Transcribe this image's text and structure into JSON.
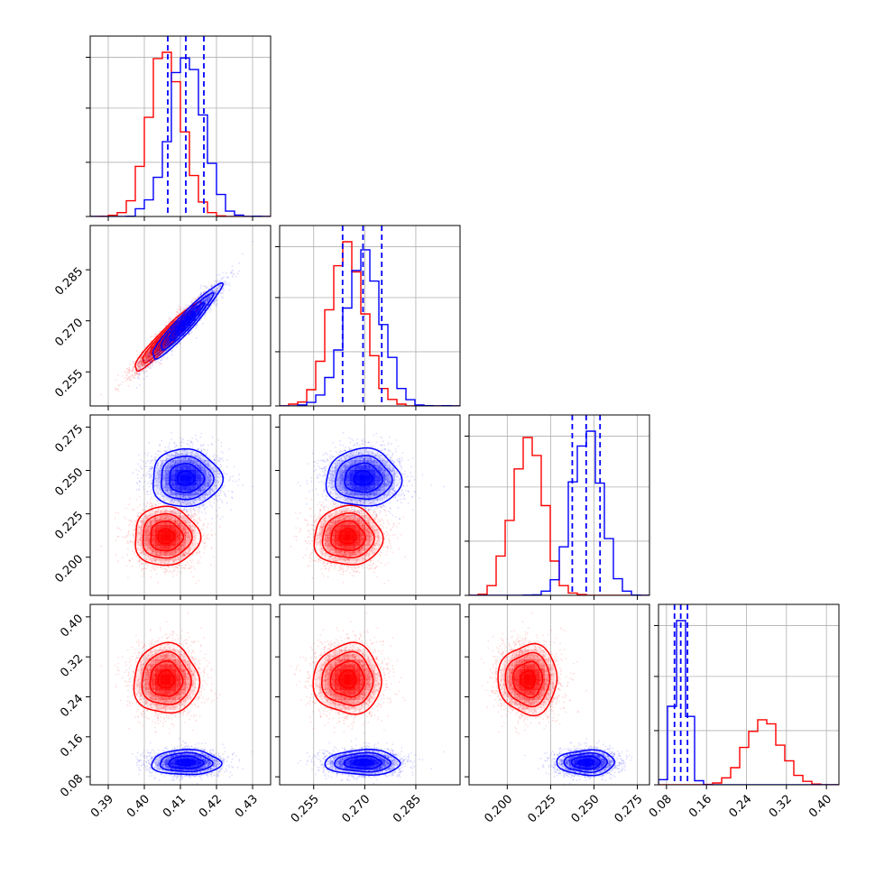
{
  "chart_data": {
    "type": "corner",
    "n_params": 4,
    "background": "#ffffff",
    "grid": true,
    "series": [
      {
        "color": "#ff0000",
        "means": [
          0.406,
          0.265,
          0.212,
          0.275
        ],
        "sds": [
          0.0045,
          0.005,
          0.0085,
          0.035
        ],
        "correlation": [
          [
            1,
            0.95,
            0,
            0
          ],
          [
            0.95,
            1,
            0,
            0
          ],
          [
            0,
            0,
            1,
            0
          ],
          [
            0,
            0,
            0,
            1
          ]
        ]
      },
      {
        "color": "#0000ff",
        "means": [
          0.4115,
          0.2695,
          0.2455,
          0.1085
        ],
        "sds": [
          0.0048,
          0.0055,
          0.0083,
          0.0125
        ],
        "correlation": [
          [
            1,
            0.95,
            0,
            0
          ],
          [
            0.95,
            1,
            0,
            0
          ],
          [
            0,
            0,
            1,
            0
          ],
          [
            0,
            0,
            0,
            1
          ]
        ],
        "quantiles": [
          [
            0.4065,
            0.4115,
            0.4165
          ],
          [
            0.2635,
            0.2695,
            0.275
          ],
          [
            0.2375,
            0.2455,
            0.2535
          ],
          [
            0.096,
            0.1085,
            0.122
          ]
        ]
      }
    ],
    "quantile_line_color": "#0000ff",
    "axes": [
      {
        "range": [
          0.385,
          0.435
        ],
        "ticks": [
          0.39,
          0.4,
          0.41,
          0.42,
          0.43
        ],
        "tick_labels": [
          "0.39",
          "0.40",
          "0.41",
          "0.42",
          "0.43"
        ]
      },
      {
        "range": [
          0.245,
          0.298
        ],
        "ticks": [
          0.255,
          0.27,
          0.285
        ],
        "tick_labels": [
          "0.255",
          "0.270",
          "0.285"
        ]
      },
      {
        "range": [
          0.178,
          0.282
        ],
        "ticks": [
          0.2,
          0.225,
          0.25,
          0.275
        ],
        "tick_labels": [
          "0.200",
          "0.225",
          "0.250",
          "0.275"
        ]
      },
      {
        "range": [
          0.064,
          0.425
        ],
        "ticks": [
          0.08,
          0.16,
          0.24,
          0.32,
          0.4
        ],
        "tick_labels": [
          "0.08",
          "0.16",
          "0.24",
          "0.32",
          "0.40"
        ]
      }
    ]
  }
}
